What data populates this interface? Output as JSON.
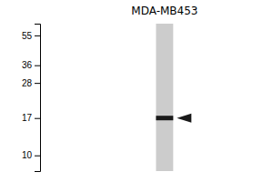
{
  "chart_data": {
    "type": "gel",
    "title": "MDA-MB453",
    "values": [
      17
    ],
    "color": "#1a1a1a",
    "ylim": [
      8,
      65
    ],
    "yticks": [
      55,
      36,
      28,
      17,
      10
    ],
    "log": "y"
  }
}
